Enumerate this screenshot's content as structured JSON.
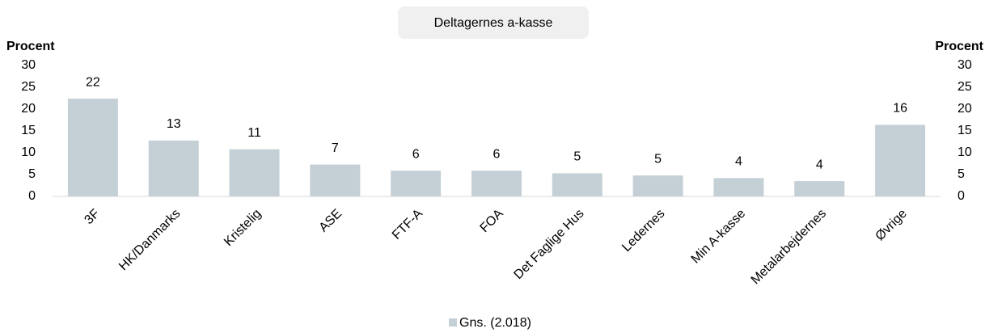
{
  "chart_data": {
    "type": "bar",
    "title": "Deltagernes a-kasse",
    "y_label": "Procent",
    "y2_label": "Procent",
    "categories": [
      "3F",
      "HK/Danmarks",
      "Kristelig",
      "ASE",
      "FTF-A",
      "FOA",
      "Det Faglige Hus",
      "Ledernes",
      "Min A-kasse",
      "Metalarbejdernes",
      "Øvrige"
    ],
    "series": [
      {
        "name": "Gns. (2.018)",
        "color": "#c5d0d6",
        "values": [
          22.4,
          12.8,
          10.8,
          7.3,
          5.9,
          5.9,
          5.3,
          4.8,
          4.2,
          3.5,
          16.4
        ],
        "value_labels": [
          "22",
          "13",
          "11",
          "7",
          "6",
          "6",
          "5",
          "5",
          "4",
          "4",
          "16"
        ]
      }
    ],
    "ylim": [
      0,
      30
    ],
    "yticks": [
      0,
      5,
      10,
      15,
      20,
      25,
      30
    ],
    "y2lim": [
      0,
      30
    ],
    "y2ticks": [
      0,
      5,
      10,
      15,
      20,
      25,
      30
    ],
    "legend": "bottom"
  }
}
